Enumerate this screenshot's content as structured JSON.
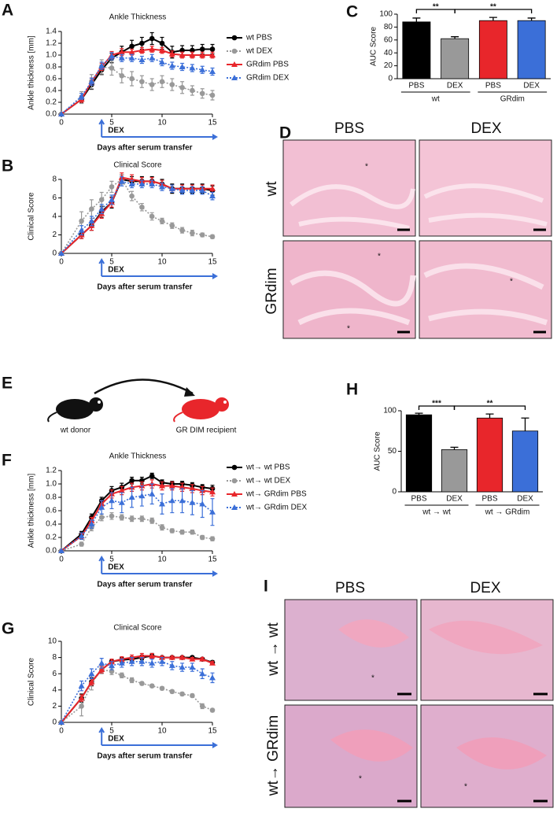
{
  "panel_labels": [
    "A",
    "B",
    "C",
    "D",
    "E",
    "F",
    "G",
    "H",
    "I"
  ],
  "chart_data": [
    {
      "type": "line",
      "title": "Ankle Thickness",
      "xlabel": "Days after serum transfer",
      "ylabel": "Ankle thickness [mm]",
      "x": [
        0,
        2,
        3,
        4,
        5,
        6,
        7,
        8,
        9,
        10,
        11,
        12,
        13,
        14,
        15
      ],
      "xlim": [
        0,
        15
      ],
      "xticks": [
        0,
        5,
        10,
        15
      ],
      "ylim": [
        0,
        1.4
      ],
      "yticks": [
        {
          "value": 0,
          "label": "0.0"
        },
        0.2,
        0.4,
        0.6,
        0.8,
        {
          "value": 1,
          "label": "1.0"
        },
        1.2,
        1.4
      ],
      "annotation": {
        "text": "DEX",
        "x": 4
      },
      "legend": "right",
      "series": [
        {
          "name": "wt PBS",
          "color": "#000000",
          "marker": "circle",
          "dash": false,
          "values": [
            0,
            0.25,
            0.5,
            0.75,
            0.95,
            1.05,
            1.15,
            1.2,
            1.28,
            1.2,
            1.05,
            1.08,
            1.08,
            1.1,
            1.1
          ],
          "errors": [
            0,
            0.06,
            0.08,
            0.08,
            0.08,
            0.1,
            0.1,
            0.1,
            0.1,
            0.1,
            0.1,
            0.08,
            0.08,
            0.08,
            0.08
          ]
        },
        {
          "name": "wt DEX",
          "color": "#999999",
          "marker": "circle",
          "dash": true,
          "values": [
            0,
            0.28,
            0.55,
            0.8,
            0.78,
            0.65,
            0.6,
            0.55,
            0.5,
            0.55,
            0.5,
            0.45,
            0.4,
            0.35,
            0.32
          ],
          "errors": [
            0,
            0.1,
            0.12,
            0.12,
            0.12,
            0.12,
            0.12,
            0.1,
            0.1,
            0.1,
            0.1,
            0.1,
            0.08,
            0.08,
            0.08
          ]
        },
        {
          "name": "GRdim PBS",
          "color": "#e8262b",
          "marker": "triangle",
          "dash": false,
          "values": [
            0,
            0.25,
            0.55,
            0.8,
            1.0,
            1.05,
            1.05,
            1.08,
            1.1,
            1.08,
            1.02,
            1.0,
            1.0,
            1.0,
            1.0
          ],
          "errors": [
            0,
            0.05,
            0.06,
            0.06,
            0.06,
            0.06,
            0.05,
            0.05,
            0.05,
            0.05,
            0.05,
            0.05,
            0.05,
            0.05,
            0.05
          ]
        },
        {
          "name": "GRdim DEX",
          "color": "#3b6fd8",
          "marker": "triangle",
          "dash": true,
          "values": [
            0,
            0.3,
            0.55,
            0.82,
            0.98,
            0.95,
            0.95,
            0.92,
            0.95,
            0.88,
            0.82,
            0.8,
            0.78,
            0.75,
            0.72
          ],
          "errors": [
            0,
            0.05,
            0.06,
            0.06,
            0.06,
            0.06,
            0.06,
            0.06,
            0.06,
            0.06,
            0.06,
            0.06,
            0.06,
            0.06,
            0.06
          ]
        }
      ]
    },
    {
      "type": "line",
      "title": "Clinical Score",
      "xlabel": "Days after serum transfer",
      "ylabel": "Clinical Score",
      "x": [
        0,
        2,
        3,
        4,
        5,
        6,
        7,
        8,
        9,
        10,
        11,
        12,
        13,
        14,
        15
      ],
      "xlim": [
        0,
        15
      ],
      "xticks": [
        0,
        5,
        10,
        15
      ],
      "ylim": [
        0,
        8
      ],
      "yticks": [
        0,
        2,
        4,
        6,
        8
      ],
      "annotation": {
        "text": "DEX",
        "x": 4
      },
      "series": [
        {
          "name": "wt PBS",
          "color": "#000000",
          "marker": "circle",
          "dash": false,
          "values": [
            0,
            2,
            3,
            4.5,
            5.5,
            8,
            7.8,
            7.8,
            7.8,
            7.5,
            7,
            7,
            7,
            7,
            6.8
          ],
          "errors": [
            0,
            0.4,
            0.5,
            0.6,
            0.6,
            0.5,
            0.5,
            0.5,
            0.5,
            0.5,
            0.5,
            0.5,
            0.5,
            0.5,
            0.5
          ]
        },
        {
          "name": "wt DEX",
          "color": "#999999",
          "marker": "circle",
          "dash": true,
          "values": [
            0,
            3.5,
            4.8,
            5.8,
            7.2,
            8,
            6.2,
            5,
            4,
            3.5,
            3,
            2.5,
            2.2,
            2,
            1.8
          ],
          "errors": [
            0,
            1,
            1,
            0.8,
            0.6,
            0.5,
            0.5,
            0.4,
            0.4,
            0.3,
            0.3,
            0.3,
            0.3,
            0.2,
            0.2
          ]
        },
        {
          "name": "GRdim PBS",
          "color": "#e8262b",
          "marker": "triangle",
          "dash": false,
          "values": [
            0,
            2,
            3,
            4.3,
            5.5,
            8.2,
            8,
            7.8,
            7.8,
            7.5,
            7,
            7,
            7,
            7,
            7
          ],
          "errors": [
            0,
            0.4,
            0.5,
            0.5,
            0.5,
            0.5,
            0.5,
            0.4,
            0.4,
            0.4,
            0.4,
            0.4,
            0.4,
            0.4,
            0.4
          ]
        },
        {
          "name": "GRdim DEX",
          "color": "#3b6fd8",
          "marker": "triangle",
          "dash": true,
          "values": [
            0,
            2.5,
            3.5,
            4.8,
            5.8,
            7.8,
            7.5,
            7.5,
            7.5,
            7.2,
            7,
            6.8,
            6.8,
            6.8,
            6.2
          ],
          "errors": [
            0,
            0.5,
            0.5,
            0.5,
            0.5,
            0.5,
            0.4,
            0.4,
            0.4,
            0.4,
            0.4,
            0.4,
            0.4,
            0.4,
            0.4
          ]
        }
      ]
    },
    {
      "type": "bar",
      "ylabel": "AUC Score",
      "categories": [
        "PBS",
        "DEX",
        "PBS",
        "DEX"
      ],
      "groups": [
        "wt",
        "GRdim"
      ],
      "values": [
        88,
        62,
        90,
        90
      ],
      "errors": [
        6,
        3,
        5,
        4
      ],
      "colors": [
        "#000000",
        "#999999",
        "#e8262b",
        "#3b6fd8"
      ],
      "ylim": [
        0,
        100
      ],
      "yticks": [
        0,
        20,
        40,
        60,
        80,
        100
      ],
      "significance": [
        {
          "label": "**",
          "from": 0,
          "to": 1
        },
        {
          "label": "**",
          "from": 1,
          "to": 3
        }
      ]
    },
    {
      "type": "line",
      "title": "Ankle Thickness",
      "xlabel": "Days after serum transfer",
      "ylabel": "Ankle thickness [mm]",
      "x": [
        0,
        2,
        3,
        4,
        5,
        6,
        7,
        8,
        9,
        10,
        11,
        12,
        13,
        14,
        15
      ],
      "xlim": [
        0,
        15
      ],
      "xticks": [
        0,
        5,
        10,
        15
      ],
      "ylim": [
        0,
        1.2
      ],
      "yticks": [
        {
          "value": 0,
          "label": "0.0"
        },
        0.2,
        0.4,
        0.6,
        0.8,
        {
          "value": 1,
          "label": "1.0"
        },
        1.2
      ],
      "annotation": {
        "text": "DEX",
        "x": 4
      },
      "legend": "right",
      "series": [
        {
          "name": "wt→ wt PBS",
          "color": "#000000",
          "marker": "circle",
          "dash": false,
          "values": [
            0,
            0.25,
            0.5,
            0.75,
            0.9,
            0.95,
            1.05,
            1.05,
            1.12,
            1.02,
            1.0,
            1.0,
            0.98,
            0.95,
            0.93
          ],
          "errors": [
            0,
            0.04,
            0.05,
            0.05,
            0.06,
            0.06,
            0.05,
            0.05,
            0.04,
            0.04,
            0.04,
            0.04,
            0.04,
            0.04,
            0.05
          ]
        },
        {
          "name": "wt→ wt DEX",
          "color": "#999999",
          "marker": "circle",
          "dash": true,
          "values": [
            0,
            0.1,
            0.35,
            0.5,
            0.52,
            0.5,
            0.48,
            0.48,
            0.45,
            0.35,
            0.3,
            0.28,
            0.28,
            0.2,
            0.18
          ],
          "errors": [
            0,
            0.03,
            0.05,
            0.05,
            0.05,
            0.04,
            0.04,
            0.04,
            0.04,
            0.04,
            0.03,
            0.03,
            0.03,
            0.03,
            0.03
          ]
        },
        {
          "name": "wt→ GRdim PBS",
          "color": "#e8262b",
          "marker": "triangle",
          "dash": false,
          "values": [
            0,
            0.22,
            0.45,
            0.7,
            0.85,
            0.9,
            0.95,
            0.97,
            1.0,
            0.97,
            0.97,
            0.95,
            0.93,
            0.9,
            0.88
          ],
          "errors": [
            0,
            0.04,
            0.05,
            0.05,
            0.06,
            0.06,
            0.06,
            0.06,
            0.06,
            0.06,
            0.06,
            0.06,
            0.06,
            0.06,
            0.06
          ]
        },
        {
          "name": "wt→ GRdim DEX",
          "color": "#3b6fd8",
          "marker": "triangle",
          "dash": true,
          "values": [
            0,
            0.22,
            0.4,
            0.65,
            0.75,
            0.72,
            0.8,
            0.82,
            0.85,
            0.7,
            0.75,
            0.75,
            0.72,
            0.7,
            0.58
          ],
          "errors": [
            0,
            0.05,
            0.06,
            0.1,
            0.12,
            0.15,
            0.15,
            0.15,
            0.15,
            0.15,
            0.18,
            0.18,
            0.18,
            0.2,
            0.2
          ]
        }
      ]
    },
    {
      "type": "line",
      "title": "Clinical Score",
      "xlabel": "Days after serum transfer",
      "ylabel": "Clinical Score",
      "x": [
        0,
        2,
        3,
        4,
        5,
        6,
        7,
        8,
        9,
        10,
        11,
        12,
        13,
        14,
        15
      ],
      "xlim": [
        0,
        15
      ],
      "xticks": [
        0,
        5,
        10,
        15
      ],
      "ylim": [
        0,
        10
      ],
      "yticks": [
        0,
        2,
        4,
        6,
        8,
        10
      ],
      "annotation": {
        "text": "DEX",
        "x": 4
      },
      "series": [
        {
          "name": "wt→ wt PBS",
          "color": "#000000",
          "marker": "circle",
          "dash": false,
          "values": [
            0,
            3,
            5,
            6.5,
            7.5,
            7.7,
            7.8,
            8,
            8.2,
            8,
            8,
            8,
            8,
            7.8,
            7.4
          ],
          "errors": [
            0,
            0.5,
            0.5,
            0.4,
            0.3,
            0.3,
            0.3,
            0.3,
            0.3,
            0.2,
            0.2,
            0.2,
            0.2,
            0.2,
            0.2
          ]
        },
        {
          "name": "wt→ wt DEX",
          "color": "#999999",
          "marker": "circle",
          "dash": true,
          "values": [
            0,
            2,
            4.8,
            6.5,
            6.3,
            5.8,
            5.2,
            4.8,
            4.5,
            4.2,
            3.8,
            3.5,
            3.3,
            2,
            1.5
          ],
          "errors": [
            0,
            1.2,
            0.8,
            0.5,
            0.4,
            0.3,
            0.3,
            0.2,
            0.2,
            0.2,
            0.2,
            0.2,
            0.2,
            0.3,
            0.2
          ]
        },
        {
          "name": "wt→ GRdim PBS",
          "color": "#e8262b",
          "marker": "triangle",
          "dash": false,
          "values": [
            0,
            3,
            5,
            6.5,
            7.5,
            7.8,
            8,
            8.2,
            8.2,
            8,
            8,
            8,
            7.8,
            7.8,
            7.3
          ],
          "errors": [
            0,
            0.4,
            0.4,
            0.4,
            0.3,
            0.3,
            0.3,
            0.3,
            0.3,
            0.2,
            0.2,
            0.2,
            0.2,
            0.2,
            0.2
          ]
        },
        {
          "name": "wt→ GRdim DEX",
          "color": "#3b6fd8",
          "marker": "triangle",
          "dash": true,
          "values": [
            0,
            4.5,
            6,
            7.3,
            7,
            7.3,
            7.5,
            7.5,
            7.3,
            7.5,
            7,
            6.8,
            6.8,
            6,
            5.5
          ],
          "errors": [
            0,
            0.6,
            0.6,
            0.6,
            0.5,
            0.5,
            0.5,
            0.5,
            0.5,
            0.5,
            0.5,
            0.5,
            0.5,
            0.6,
            0.6
          ]
        }
      ]
    },
    {
      "type": "bar",
      "ylabel": "AUC Score",
      "categories": [
        "PBS",
        "DEX",
        "PBS",
        "DEX"
      ],
      "groups": [
        "wt → wt",
        "wt → GRdim"
      ],
      "values": [
        95,
        52,
        91,
        75
      ],
      "errors": [
        2,
        3,
        5,
        16
      ],
      "colors": [
        "#000000",
        "#999999",
        "#e8262b",
        "#3b6fd8"
      ],
      "ylim": [
        0,
        100
      ],
      "yticks": [
        0,
        50,
        100
      ],
      "significance": [
        {
          "label": "***",
          "from": 0,
          "to": 1
        },
        {
          "label": "**",
          "from": 1,
          "to": 3
        }
      ]
    }
  ],
  "histology_D": {
    "columns": [
      "PBS",
      "DEX"
    ],
    "rows": [
      "wt",
      "GRdim"
    ],
    "marker": "*"
  },
  "histology_I": {
    "columns": [
      "PBS",
      "DEX"
    ],
    "rows": [
      "wt → wt",
      "wt→ GRdim"
    ],
    "marker": "*"
  },
  "diagram_E": {
    "donor": "wt donor",
    "recipient": "GR DIM recipient"
  }
}
